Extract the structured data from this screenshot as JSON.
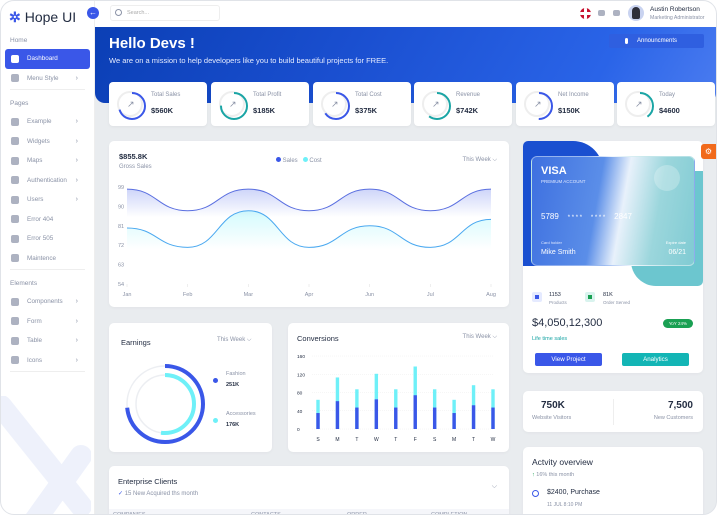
{
  "app": {
    "name": "Hope UI"
  },
  "sidebar": {
    "sections": [
      {
        "title": "Home",
        "items": [
          {
            "label": "Dashboard",
            "icon": "grid-icon",
            "active": true
          },
          {
            "label": "Menu Style",
            "icon": "menu-style-icon",
            "chevron": true
          }
        ]
      },
      {
        "title": "Pages",
        "items": [
          {
            "label": "Example",
            "icon": "briefcase-icon",
            "chevron": true
          },
          {
            "label": "Widgets",
            "icon": "widget-icon",
            "chevron": true
          },
          {
            "label": "Maps",
            "icon": "map-pin-icon",
            "chevron": true
          },
          {
            "label": "Authentication",
            "icon": "shield-icon",
            "chevron": true
          },
          {
            "label": "Users",
            "icon": "users-icon",
            "chevron": true
          },
          {
            "label": "Error 404",
            "icon": "error-icon"
          },
          {
            "label": "Error 505",
            "icon": "warning-icon"
          },
          {
            "label": "Maintence",
            "icon": "maintenance-icon"
          }
        ]
      },
      {
        "title": "Elements",
        "items": [
          {
            "label": "Components",
            "icon": "components-icon",
            "chevron": true
          },
          {
            "label": "Form",
            "icon": "form-icon",
            "chevron": true
          },
          {
            "label": "Table",
            "icon": "table-icon",
            "chevron": true
          },
          {
            "label": "Icons",
            "icon": "info-icon",
            "chevron": true
          }
        ]
      }
    ]
  },
  "topbar": {
    "search_placeholder": "Search...",
    "user_name": "Austin Robertson",
    "user_role": "Marketing Administrator"
  },
  "hero": {
    "title": "Hello Devs !",
    "subtitle": "We are on a mission to help developers like you to build beautiful projects for FREE.",
    "button": "Announcments"
  },
  "stats": [
    {
      "label": "Total Sales",
      "value": "$560K",
      "color": "#3a57e8",
      "pct": 0.7
    },
    {
      "label": "Total Profit",
      "value": "$185K",
      "color": "#1aa5a5",
      "pct": 0.75
    },
    {
      "label": "Total Cost",
      "value": "$375K",
      "color": "#3a57e8",
      "pct": 0.65
    },
    {
      "label": "Revenue",
      "value": "$742K",
      "color": "#1aa5a5",
      "pct": 0.6
    },
    {
      "label": "Net Income",
      "value": "$150K",
      "color": "#3a57e8",
      "pct": 0.5
    },
    {
      "label": "Today",
      "value": "$4600",
      "color": "#1aa5a5",
      "pct": 0.4
    }
  ],
  "gross": {
    "value": "$855.8K",
    "label": "Gross Sales",
    "filter": "This Week",
    "legend": [
      "Sales",
      "Cost"
    ]
  },
  "earnings": {
    "title": "Earnings",
    "filter": "This Week",
    "items": [
      {
        "label": "Fashion",
        "value": "251K",
        "color": "#3a57e8"
      },
      {
        "label": "Accessories",
        "value": "176K",
        "color": "#6ef0f8"
      }
    ]
  },
  "conversions": {
    "title": "Conversions",
    "filter": "This Week"
  },
  "clients": {
    "title": "Enterprise Clients",
    "subtitle": "15 New Acquired ths month",
    "columns": [
      "COMPANIES",
      "CONTACTS",
      "ORDER",
      "COMPLETION"
    ]
  },
  "visa": {
    "brand": "VISA",
    "tier": "PREMIUM ACCOUNT",
    "number_start": "5789",
    "mask1": "* * * *",
    "mask2": "* * * *",
    "number_end": "2847",
    "holder_label": "Card holder",
    "holder": "Mike Smith",
    "expire_label": "Expire date",
    "expire": "06/21"
  },
  "wallet": {
    "products": "1153",
    "products_label": "Products",
    "orders": "81K",
    "orders_label": "Order Served",
    "total": "$4,050,12,300",
    "badge": "YoY 24%",
    "lifetime": "Life time sales",
    "btn1": "View Project",
    "btn2": "Analytics"
  },
  "visitors": {
    "v1": "750K",
    "l1": "Website Visitors",
    "v2": "7,500",
    "l2": "New Customers"
  },
  "activity": {
    "title": "Actvity overview",
    "growth": "16% this month",
    "item": "$2400, Purchase",
    "time": "11 JUL 8:10 PM"
  },
  "chart_data": [
    {
      "type": "area",
      "title": "Gross Sales",
      "categories": [
        "Jan",
        "Feb",
        "Mar",
        "Apr",
        "Jun",
        "Jul",
        "Aug"
      ],
      "yticks": [
        54,
        63,
        72,
        81,
        90,
        99
      ],
      "ylim": [
        54,
        99
      ],
      "series": [
        {
          "name": "Sales",
          "values": [
            98,
            88,
            98,
            88,
            98,
            88,
            98
          ]
        },
        {
          "name": "Cost",
          "values": [
            80,
            71,
            88,
            71,
            81,
            71,
            84
          ]
        }
      ]
    },
    {
      "type": "bar",
      "title": "Conversions",
      "categories": [
        "S",
        "M",
        "T",
        "W",
        "T",
        "F",
        "S",
        "M",
        "T",
        "W"
      ],
      "yticks": [
        0,
        40,
        80,
        120,
        160
      ],
      "ylim": [
        0,
        160
      ],
      "series": [
        {
          "name": "base",
          "values": [
            35,
            61,
            47,
            65,
            47,
            74,
            47,
            35,
            52,
            47
          ]
        },
        {
          "name": "total",
          "values": [
            64,
            113,
            87,
            121,
            87,
            137,
            87,
            64,
            96,
            87
          ]
        }
      ]
    },
    {
      "type": "pie",
      "title": "Earnings",
      "categories": [
        "Fashion",
        "Accessories"
      ],
      "values": [
        251,
        176
      ]
    }
  ]
}
